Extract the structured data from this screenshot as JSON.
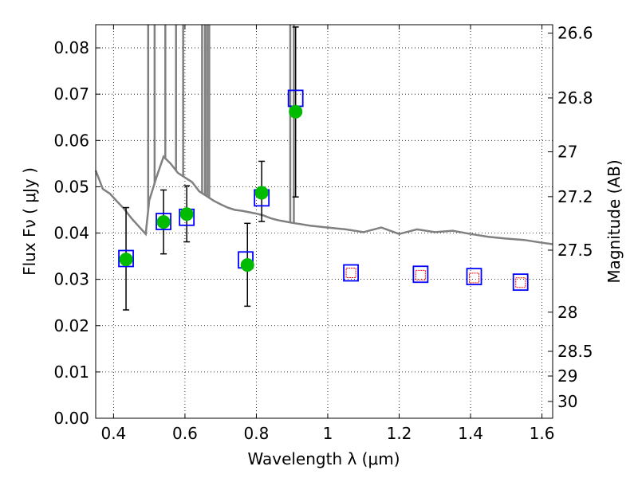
{
  "chart_data": {
    "type": "scatter",
    "title": "",
    "xlabel": "Wavelength  λ (μm)",
    "ylabel": "Flux  Fν  ( μJy )",
    "y2label": "Magnitude (AB)",
    "xlim": [
      0.35,
      1.63
    ],
    "ylim": [
      0.0,
      0.085
    ],
    "grid": true,
    "x_ticks": [
      "0.4",
      "0.6",
      "0.8",
      "1",
      "1.2",
      "1.4",
      "1.6"
    ],
    "x_tick_values": [
      0.4,
      0.6,
      0.8,
      1.0,
      1.2,
      1.4,
      1.6
    ],
    "y_ticks": [
      "0.00",
      "0.01",
      "0.02",
      "0.03",
      "0.04",
      "0.05",
      "0.06",
      "0.07",
      "0.08"
    ],
    "y_tick_values": [
      0.0,
      0.01,
      0.02,
      0.03,
      0.04,
      0.05,
      0.06,
      0.07,
      0.08
    ],
    "mag_ticks": [
      "26.6",
      "26.8",
      "27",
      "27.2",
      "27.5",
      "28",
      "28.5",
      "29",
      "30"
    ],
    "mag_tick_values": [
      26.6,
      26.8,
      27.0,
      27.2,
      27.5,
      28.0,
      28.5,
      29.0,
      30.0
    ],
    "series": [
      {
        "kind": "line",
        "color": "#808080",
        "x": [
          0.35,
          0.37,
          0.39,
          0.41,
          0.43,
          0.45,
          0.47,
          0.49,
          0.5,
          0.52,
          0.54,
          0.56,
          0.58,
          0.6,
          0.62,
          0.64,
          0.66,
          0.68,
          0.7,
          0.72,
          0.74,
          0.76,
          0.78,
          0.8,
          0.82,
          0.84,
          0.86,
          0.88,
          0.9,
          0.95,
          1.0,
          1.05,
          1.1,
          1.15,
          1.2,
          1.25,
          1.3,
          1.35,
          1.4,
          1.45,
          1.5,
          1.55,
          1.6,
          1.63
        ],
        "y": [
          0.0535,
          0.0495,
          0.0485,
          0.0468,
          0.0452,
          0.0432,
          0.0415,
          0.0398,
          0.047,
          0.052,
          0.0565,
          0.055,
          0.053,
          0.052,
          0.051,
          0.049,
          0.048,
          0.047,
          0.0462,
          0.0455,
          0.045,
          0.0448,
          0.0445,
          0.0442,
          0.0438,
          0.0432,
          0.0428,
          0.0425,
          0.0422,
          0.0416,
          0.0412,
          0.0408,
          0.0402,
          0.0412,
          0.0398,
          0.0408,
          0.0402,
          0.0405,
          0.0398,
          0.0392,
          0.0388,
          0.0385,
          0.0379,
          0.0376
        ]
      },
      {
        "kind": "line-spikes",
        "color": "#808080",
        "x": [
          0.497,
          0.515,
          0.545,
          0.575,
          0.595,
          0.648,
          0.656,
          0.662,
          0.668,
          0.895,
          0.905
        ],
        "y": [
          0.085,
          0.085,
          0.085,
          0.085,
          0.085,
          0.085,
          0.085,
          0.085,
          0.085,
          0.085,
          0.085
        ]
      },
      {
        "kind": "points-errorbars",
        "marker": "circle",
        "color": "#00bb00",
        "x": [
          0.435,
          0.54,
          0.605,
          0.775,
          0.815,
          0.91
        ],
        "y": [
          0.0343,
          0.0424,
          0.0441,
          0.0331,
          0.0487,
          0.0662
        ],
        "yerr_low": [
          0.0234,
          0.0355,
          0.0381,
          0.0242,
          0.0425,
          0.0478
        ],
        "yerr_high": [
          0.0455,
          0.0493,
          0.0502,
          0.0421,
          0.0555,
          0.0845
        ]
      },
      {
        "kind": "points",
        "marker": "square-open",
        "color": "#0000ff",
        "x": [
          0.435,
          0.54,
          0.605,
          0.77,
          0.815,
          0.91,
          1.065,
          1.26,
          1.41,
          1.54
        ],
        "y": [
          0.0345,
          0.0425,
          0.0434,
          0.0342,
          0.0476,
          0.0691,
          0.0314,
          0.0311,
          0.0306,
          0.0294
        ]
      },
      {
        "kind": "points",
        "marker": "square-open-small",
        "color": "#ff0000",
        "x": [
          1.065,
          1.26,
          1.41,
          1.54
        ],
        "y": [
          0.0314,
          0.0309,
          0.0303,
          0.0293
        ]
      }
    ]
  }
}
